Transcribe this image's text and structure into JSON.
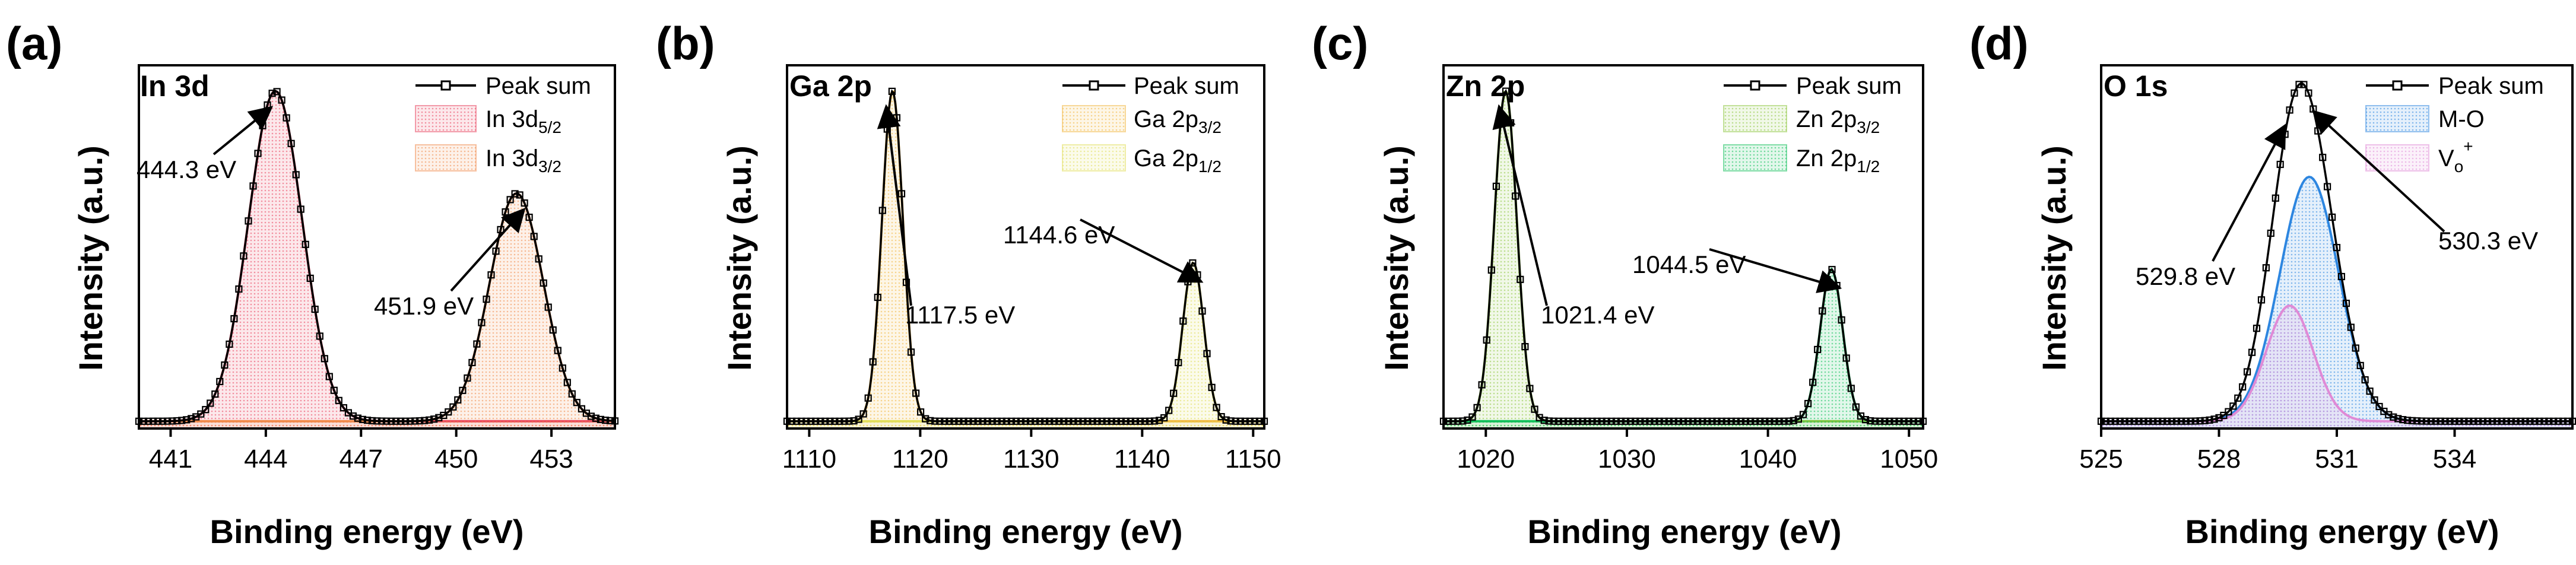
{
  "figure": {
    "xlabel": "Binding energy (eV)",
    "ylabel": "Intensity (a.u.)"
  },
  "colors": {
    "peak_sum": "#000000",
    "in_a": "#e8415e",
    "in_b": "#f08a4b",
    "ga_a": "#f2b53d",
    "ga_b": "#e2de5a",
    "zn_a": "#8dc63f",
    "zn_b": "#12c05a",
    "o_a": "#2d86e0",
    "o_b": "#e08ad6"
  },
  "chart_data": [
    {
      "type": "line",
      "panel": "(a)",
      "element": "In 3d",
      "xlim": [
        440,
        455
      ],
      "ylim": [
        0,
        1.1
      ],
      "xticks": [
        441,
        444,
        447,
        450,
        453
      ],
      "peaks": [
        {
          "center": 444.3,
          "height": 1.0,
          "width": 0.85
        },
        {
          "center": 451.9,
          "height": 0.69,
          "width": 0.85
        }
      ],
      "series": [
        {
          "name": "Peak sum"
        },
        {
          "name": "In 3d",
          "sub": "5/2",
          "color": "#e8415e"
        },
        {
          "name": "In 3d",
          "sub": "3/2",
          "color": "#f08a4b"
        }
      ],
      "annotations": [
        {
          "label": "444.3 eV",
          "peak": 0
        },
        {
          "label": "451.9 eV",
          "peak": 1
        }
      ]
    },
    {
      "type": "line",
      "panel": "(b)",
      "element": "Ga 2p",
      "xlim": [
        1108,
        1151
      ],
      "ylim": [
        0,
        1.1
      ],
      "xticks": [
        1110,
        1120,
        1130,
        1140,
        1150
      ],
      "peaks": [
        {
          "center": 1117.5,
          "height": 1.0,
          "width": 0.95
        },
        {
          "center": 1144.6,
          "height": 0.48,
          "width": 0.95
        }
      ],
      "series": [
        {
          "name": "Peak sum"
        },
        {
          "name": "Ga 2p",
          "sub": "3/2",
          "color": "#f2b53d"
        },
        {
          "name": "Ga 2p",
          "sub": "1/2",
          "color": "#e2de5a"
        }
      ],
      "annotations": [
        {
          "label": "1117.5 eV",
          "peak": 0
        },
        {
          "label": "1144.6 eV",
          "peak": 1
        }
      ]
    },
    {
      "type": "line",
      "panel": "(c)",
      "element": "Zn 2p",
      "xlim": [
        1017,
        1051
      ],
      "ylim": [
        0,
        1.1
      ],
      "xticks": [
        1020,
        1030,
        1040,
        1050
      ],
      "peaks": [
        {
          "center": 1021.4,
          "height": 1.0,
          "width": 0.8
        },
        {
          "center": 1044.5,
          "height": 0.46,
          "width": 0.8
        }
      ],
      "series": [
        {
          "name": "Peak sum"
        },
        {
          "name": "Zn 2p",
          "sub": "3/2",
          "color": "#8dc63f"
        },
        {
          "name": "Zn 2p",
          "sub": "1/2",
          "color": "#12c05a"
        }
      ],
      "annotations": [
        {
          "label": "1021.4 eV",
          "peak": 0
        },
        {
          "label": "1044.5 eV",
          "peak": 1
        }
      ]
    },
    {
      "type": "line",
      "panel": "(d)",
      "element": "O 1s",
      "xlim": [
        525,
        537
      ],
      "ylim": [
        0,
        1.1
      ],
      "xticks": [
        525,
        528,
        531,
        534
      ],
      "peaks": [
        {
          "center": 530.3,
          "height": 0.74,
          "width": 0.75
        },
        {
          "center": 529.8,
          "height": 0.35,
          "width": 0.6
        }
      ],
      "series": [
        {
          "name": "Peak sum"
        },
        {
          "name": "M-O",
          "sub": "",
          "color": "#2d86e0"
        },
        {
          "name": "V",
          "sub": "o",
          "sup": "+",
          "color": "#e08ad6"
        }
      ],
      "annotations": [
        {
          "label": "529.8 eV",
          "peak": 1
        },
        {
          "label": "530.3 eV",
          "peak": 0
        }
      ]
    }
  ]
}
